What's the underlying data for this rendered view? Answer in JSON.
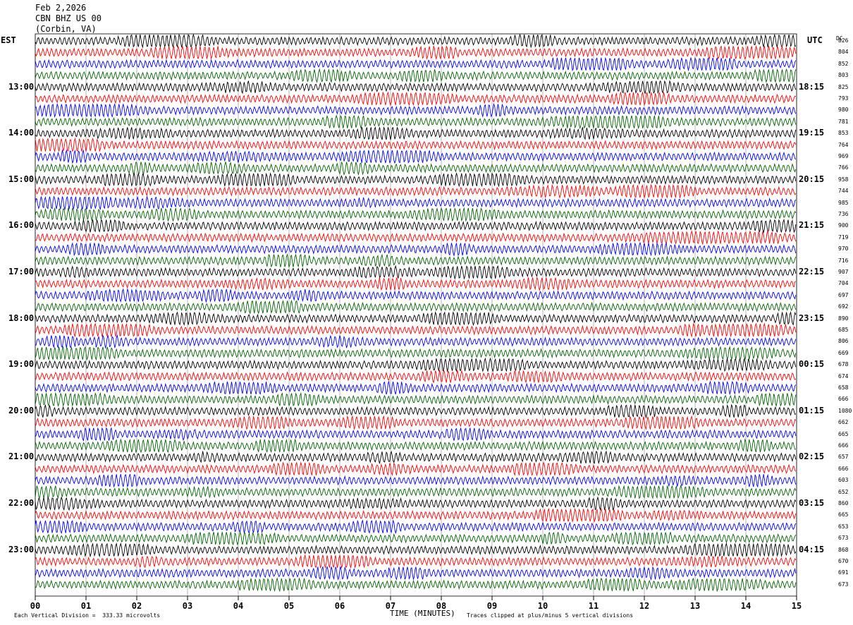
{
  "header": {
    "date": "Feb 2,2026",
    "station": "CBN BHZ US 00",
    "location": "(Corbin, VA)"
  },
  "left_timezone": "EST",
  "right_timezone": "UTC",
  "dc_label": "DC",
  "footer": {
    "scale_note": "Each Vertical Division =  333.33 microvolts",
    "clip_note": "Traces clipped at plus/minus 5 vertical divisions"
  },
  "colors": {
    "trace_cycle": [
      "#000000",
      "#ff0000",
      "#0000ff",
      "#006400"
    ],
    "grid": "#888888"
  },
  "chart_data": {
    "type": "line",
    "title": "",
    "xlabel": "TIME (MINUTES)",
    "ylabel": "",
    "xlim": [
      0,
      15
    ],
    "x_ticks": [
      "00",
      "01",
      "02",
      "03",
      "04",
      "05",
      "06",
      "07",
      "08",
      "09",
      "10",
      "11",
      "12",
      "13",
      "14",
      "15"
    ],
    "row_count": 48,
    "row_minutes": 15,
    "left_hour_labels": [
      "13:00",
      "14:00",
      "15:00",
      "16:00",
      "17:00",
      "18:00",
      "19:00",
      "20:00",
      "21:00",
      "22:00",
      "23:00"
    ],
    "left_label_rows": [
      4,
      8,
      12,
      16,
      20,
      24,
      28,
      32,
      36,
      40,
      44
    ],
    "right_hour_labels": [
      "18:15",
      "19:15",
      "20:15",
      "21:15",
      "22:15",
      "23:15",
      "00:15",
      "01:15",
      "02:15",
      "03:15",
      "04:15"
    ],
    "right_label_rows": [
      4,
      8,
      12,
      16,
      20,
      24,
      28,
      32,
      36,
      40,
      44
    ],
    "dc_offsets": [
      "826",
      "804",
      "852",
      "803",
      "825",
      "793",
      "980",
      "781",
      "853",
      "764",
      "969",
      "766",
      "958",
      "744",
      "985",
      "736",
      "900",
      "719",
      "970",
      "716",
      "907",
      "704",
      "697",
      "692",
      "890",
      "685",
      "806",
      "669",
      "678",
      "674",
      "658",
      "666",
      "1080",
      "662",
      "665",
      "666",
      "657",
      "666",
      "603",
      "652",
      "860",
      "665",
      "653",
      "673",
      "868",
      "670",
      "691",
      "673"
    ]
  }
}
